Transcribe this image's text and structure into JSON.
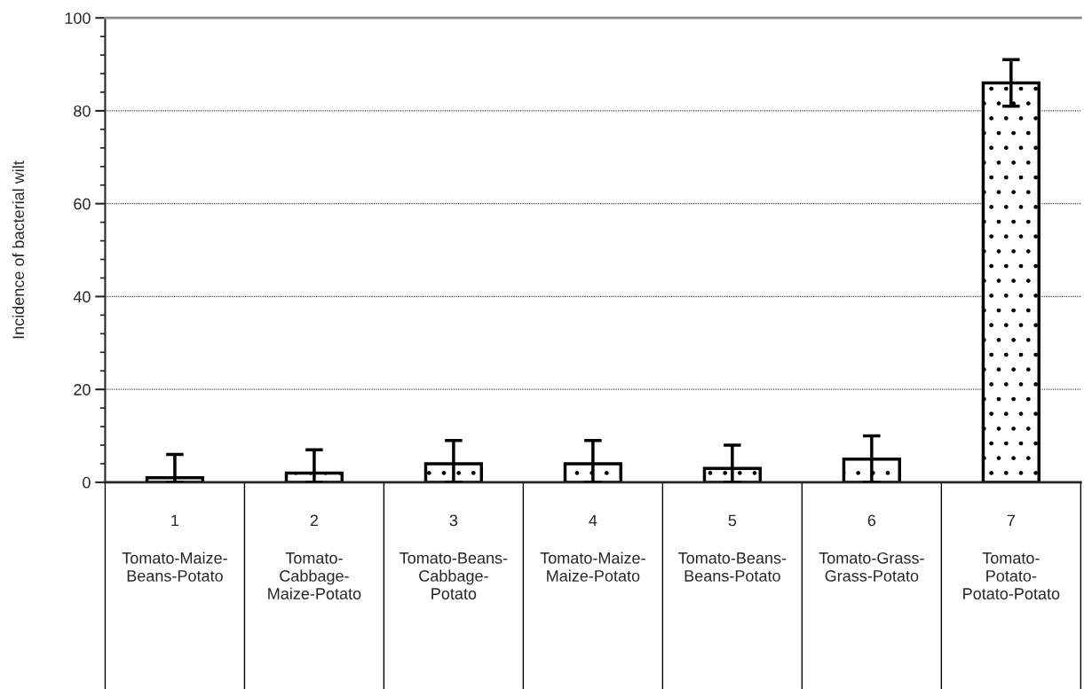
{
  "chart_data": {
    "type": "bar",
    "ylabel": "Incidence of bacterial wilt",
    "categories": [
      "1\nTomato-Maize-Beans-Potato",
      "2\nTomato-Cabbage-Maize-Potato",
      "3\nTomato-Beans-Cabbage-Potato",
      "4\nTomato-Maize-Maize-Potato",
      "5\nTomato-Beans-Beans-Potato",
      "6\nTomato-Grass-Grass-Potato",
      "7\nTomato-Potato-Potato-Potato"
    ],
    "values": [
      1,
      2,
      4,
      4,
      3,
      5,
      86
    ],
    "errors": [
      [
        0,
        6
      ],
      [
        0,
        7
      ],
      [
        0,
        9
      ],
      [
        0,
        9
      ],
      [
        0,
        8
      ],
      5,
      5
    ],
    "ylim": [
      0,
      100
    ],
    "yticks": [
      0,
      20,
      40,
      60,
      80,
      100
    ],
    "grid": "y"
  }
}
